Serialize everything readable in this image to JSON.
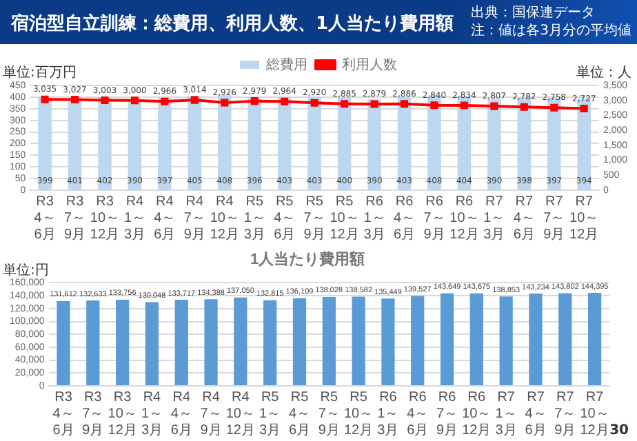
{
  "chart_data": [
    {
      "type": "bar",
      "title": "宿泊型自立訓練：総費用、利用人数、1人当たり費用額",
      "ylabel": "単位:百万円",
      "y2label": "単位：人",
      "annotations": [
        "出典：国保連データ",
        "注：値は各3月分の平均値"
      ],
      "categories": [
        "R3 4～6月",
        "R3 7～9月",
        "R3 10～12月",
        "R4 1～3月",
        "R4 4～6月",
        "R4 7～9月",
        "R4 10～12月",
        "R5 1～3月",
        "R5 4～6月",
        "R5 7～9月",
        "R5 10～12月",
        "R6 1～3月",
        "R6 4～6月",
        "R6 7～9月",
        "R6 10～12月",
        "R7 1～3月",
        "R7 4～6月",
        "R7 7～9月",
        "R7 10～12月"
      ],
      "series": [
        {
          "name": "総費用",
          "type": "bar",
          "color": "#bdd7ee",
          "values": [
            399,
            401,
            402,
            390,
            397,
            405,
            408,
            396,
            403,
            403,
            400,
            390,
            403,
            408,
            404,
            390,
            398,
            397,
            394
          ]
        },
        {
          "name": "利用人数",
          "type": "line",
          "axis": "y2",
          "color": "#ff0000",
          "values": [
            3035,
            3027,
            3003,
            3000,
            2966,
            3014,
            2926,
            2979,
            2964,
            2920,
            2885,
            2879,
            2886,
            2840,
            2834,
            2807,
            2782,
            2758,
            2727
          ],
          "value_labels": [
            "3,035",
            "3,027",
            "3,003",
            "3,000",
            "2,966",
            "3,014",
            "2,926",
            "2,979",
            "2,964",
            "2,920",
            "2,885",
            "2,879",
            "2,886",
            "2,840",
            "2,834",
            "2,807",
            "2,782",
            "2,758",
            "2,727"
          ]
        }
      ],
      "marker": "square",
      "ylim": [
        0,
        450
      ],
      "yticks": [
        0,
        50,
        100,
        150,
        200,
        250,
        300,
        350,
        400,
        450
      ],
      "y2lim": [
        0,
        3500
      ],
      "y2ticks": [
        0,
        500,
        {
          "value": 1000,
          "label": "1,000"
        },
        {
          "value": 1500,
          "label": "1,500"
        },
        {
          "value": 2000,
          "label": "2,000"
        },
        {
          "value": 2500,
          "label": "2,500"
        },
        {
          "value": 3000,
          "label": "3,000"
        },
        {
          "value": 3500,
          "label": "3,500"
        }
      ],
      "grid": "y",
      "legend": "top",
      "data_labels": true
    },
    {
      "type": "bar",
      "title": "1人当たり費用額",
      "ylabel": "単位:円",
      "annotations": [
        "30"
      ],
      "categories": [
        "R3 4～6月",
        "R3 7～9月",
        "R3 10～12月",
        "R4 1～3月",
        "R4 4～6月",
        "R4 7～9月",
        "R4 10～12月",
        "R5 1～3月",
        "R5 4～6月",
        "R5 7～9月",
        "R5 10～12月",
        "R6 1～3月",
        "R6 4～6月",
        "R6 7～9月",
        "R6 10～12月",
        "R7 1～3月",
        "R7 4～6月",
        "R7 7～9月",
        "R7 10～12月"
      ],
      "color": "#5b9bd5",
      "values": [
        131612,
        132633,
        133756,
        130048,
        133717,
        134388,
        137050,
        132815,
        136109,
        138028,
        138582,
        135449,
        139527,
        143649,
        143675,
        138853,
        143234,
        143802,
        144395
      ],
      "value_labels": [
        "131,612",
        "132,633",
        "133,756",
        "130,048",
        "133,717",
        "134,388",
        "137,050",
        "132,815",
        "136,109",
        "138,028",
        "138,582",
        "135,449",
        "139,527",
        "143,649",
        "143,675",
        "138,853",
        "143,234",
        "143,802",
        "144,395"
      ],
      "ylim": [
        0,
        160000
      ],
      "yticks": [
        0,
        {
          "value": 20000,
          "label": "20,000"
        },
        {
          "value": 40000,
          "label": "40,000"
        },
        {
          "value": 60000,
          "label": "60,000"
        },
        {
          "value": 80000,
          "label": "80,000"
        },
        {
          "value": 100000,
          "label": "100,000"
        },
        {
          "value": 120000,
          "label": "120,000"
        },
        {
          "value": 140000,
          "label": "140,000"
        },
        {
          "value": 160000,
          "label": "160,000"
        }
      ],
      "grid": "y"
    }
  ]
}
